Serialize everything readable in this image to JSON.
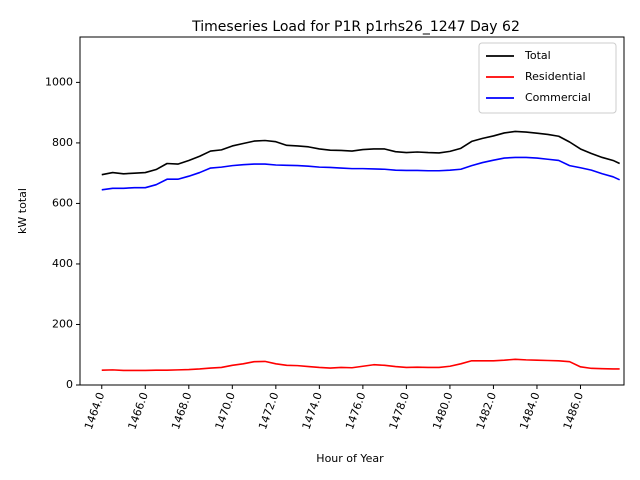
{
  "chart_data": {
    "type": "line",
    "title": "Timeseries Load for P1R p1rhs26_1247  Day 62",
    "xlabel": "Hour of Year",
    "ylabel": "kW total",
    "xlim": [
      1463.0,
      1488.0
    ],
    "ylim": [
      0,
      1150
    ],
    "xticks": [
      1464,
      1466,
      1468,
      1470,
      1472,
      1474,
      1476,
      1478,
      1480,
      1482,
      1484,
      1486
    ],
    "xtick_labels": [
      "1464.0",
      "1466.0",
      "1468.0",
      "1470.0",
      "1472.0",
      "1474.0",
      "1476.0",
      "1478.0",
      "1480.0",
      "1482.0",
      "1484.0",
      "1486.0"
    ],
    "yticks": [
      0,
      200,
      400,
      600,
      800,
      1000
    ],
    "ytick_labels": [
      "0",
      "200",
      "400",
      "600",
      "800",
      "1000"
    ],
    "grid": false,
    "legend_position": "top-right",
    "x": [
      1464.0,
      1464.5,
      1465.0,
      1465.5,
      1466.0,
      1466.5,
      1467.0,
      1467.5,
      1468.0,
      1468.5,
      1469.0,
      1469.5,
      1470.0,
      1470.5,
      1471.0,
      1471.5,
      1472.0,
      1472.5,
      1473.0,
      1473.5,
      1474.0,
      1474.5,
      1475.0,
      1475.5,
      1476.0,
      1476.5,
      1477.0,
      1477.5,
      1478.0,
      1478.5,
      1479.0,
      1479.5,
      1480.0,
      1480.5,
      1481.0,
      1481.5,
      1482.0,
      1482.5,
      1483.0,
      1483.5,
      1484.0,
      1484.5,
      1485.0,
      1485.5,
      1486.0,
      1486.5,
      1487.0,
      1487.5,
      1487.8
    ],
    "series": [
      {
        "name": "Total",
        "color": "#000000",
        "values": [
          695,
          702,
          698,
          700,
          702,
          712,
          732,
          730,
          742,
          756,
          773,
          777,
          790,
          798,
          806,
          808,
          804,
          792,
          790,
          787,
          780,
          776,
          775,
          773,
          778,
          780,
          780,
          771,
          768,
          770,
          768,
          767,
          772,
          782,
          805,
          815,
          823,
          833,
          838,
          836,
          832,
          828,
          822,
          803,
          780,
          765,
          752,
          742,
          732
        ]
      },
      {
        "name": "Residential",
        "color": "#ff0000",
        "values": [
          49,
          50,
          48,
          48,
          48,
          49,
          49,
          50,
          51,
          53,
          56,
          58,
          65,
          70,
          77,
          78,
          70,
          65,
          64,
          61,
          58,
          56,
          58,
          57,
          62,
          67,
          65,
          61,
          58,
          59,
          58,
          58,
          62,
          70,
          80,
          80,
          80,
          82,
          85,
          83,
          82,
          81,
          80,
          77,
          60,
          55,
          54,
          53,
          53
        ]
      },
      {
        "name": "Commercial",
        "color": "#0000ff",
        "values": [
          645,
          650,
          650,
          652,
          652,
          662,
          680,
          680,
          690,
          702,
          717,
          720,
          725,
          728,
          730,
          730,
          727,
          726,
          725,
          723,
          720,
          719,
          717,
          715,
          715,
          714,
          713,
          710,
          709,
          709,
          708,
          708,
          710,
          713,
          725,
          735,
          743,
          750,
          752,
          752,
          750,
          746,
          742,
          725,
          718,
          710,
          698,
          688,
          678
        ]
      }
    ]
  }
}
